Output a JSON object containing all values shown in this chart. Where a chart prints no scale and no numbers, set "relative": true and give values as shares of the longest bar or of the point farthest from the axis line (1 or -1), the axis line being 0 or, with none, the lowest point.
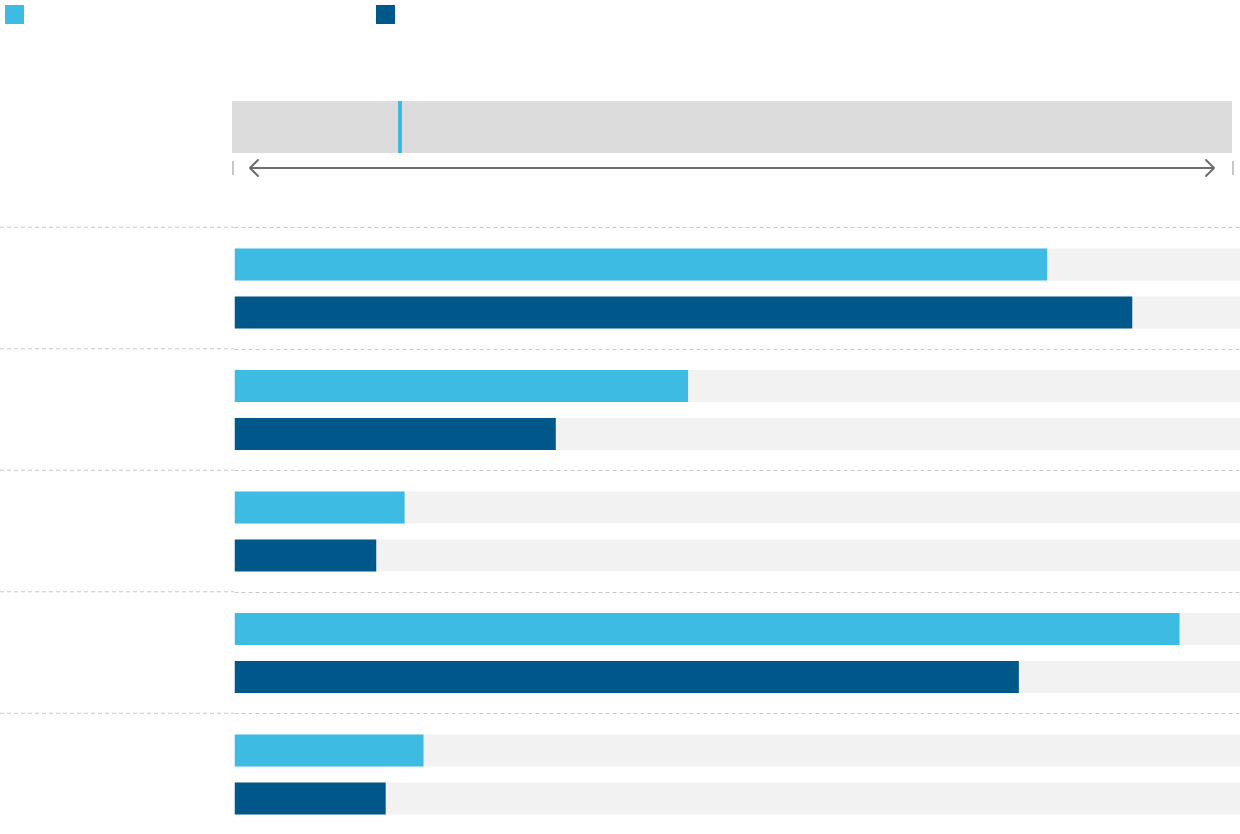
{
  "chart_data": {
    "type": "bar",
    "orientation": "horizontal",
    "relative": true,
    "categories": [
      null,
      null,
      null,
      null,
      null
    ],
    "series": [
      {
        "color": "#3dbbe3",
        "values": [
          0.86,
          0.48,
          0.18,
          1,
          0.2
        ]
      },
      {
        "color": "#00578a",
        "values": [
          0.95,
          0.34,
          0.15,
          0.83,
          0.16
        ]
      }
    ],
    "grid": "y"
  }
}
